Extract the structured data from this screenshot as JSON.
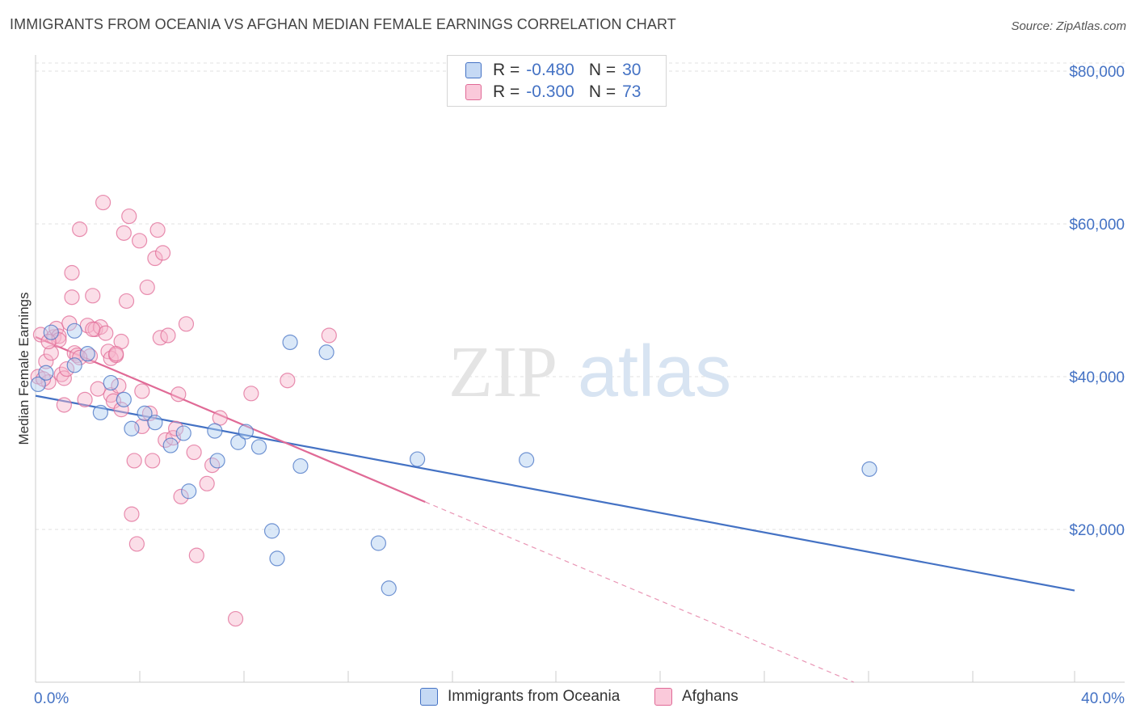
{
  "title": "IMMIGRANTS FROM OCEANIA VS AFGHAN MEDIAN FEMALE EARNINGS CORRELATION CHART",
  "source": "Source: ZipAtlas.com",
  "watermark": {
    "zip": "ZIP",
    "atlas": "atlas"
  },
  "colors": {
    "blue": "#4472c4",
    "blue_fill": "#aecbf0",
    "pink": "#e06a96",
    "pink_fill": "#f6b6cb"
  },
  "legend": {
    "blue": {
      "r_label": "R =",
      "r_value": "-0.480",
      "n_label": "N =",
      "n_value": "30"
    },
    "pink": {
      "r_label": "R =",
      "r_value": "-0.300",
      "n_label": "N =",
      "n_value": "73"
    }
  },
  "chart_data": {
    "type": "scatter",
    "xlabel": "",
    "ylabel": "Median Female Earnings",
    "xlim": [
      0,
      40
    ],
    "ylim": [
      0,
      80000
    ],
    "x_tick_labels": [
      "0.0%",
      "40.0%"
    ],
    "y_ticks": [
      20000,
      40000,
      60000,
      80000
    ],
    "y_tick_labels": [
      "$20,000",
      "$40,000",
      "$60,000",
      "$80,000"
    ],
    "grid": true,
    "series": [
      {
        "name": "Immigrants from Oceania",
        "color": "blue",
        "points": [
          [
            0.1,
            39000
          ],
          [
            0.4,
            40500
          ],
          [
            0.6,
            45800
          ],
          [
            1.5,
            46000
          ],
          [
            1.5,
            41500
          ],
          [
            2.0,
            43000
          ],
          [
            2.5,
            35300
          ],
          [
            2.9,
            39200
          ],
          [
            3.4,
            37000
          ],
          [
            3.7,
            33200
          ],
          [
            4.2,
            35200
          ],
          [
            4.6,
            34000
          ],
          [
            5.2,
            31000
          ],
          [
            5.7,
            32600
          ],
          [
            5.9,
            25000
          ],
          [
            6.9,
            32900
          ],
          [
            7.0,
            29000
          ],
          [
            7.8,
            31400
          ],
          [
            8.1,
            32800
          ],
          [
            8.6,
            30800
          ],
          [
            9.1,
            19800
          ],
          [
            9.3,
            16200
          ],
          [
            9.8,
            44500
          ],
          [
            10.2,
            28300
          ],
          [
            11.2,
            43200
          ],
          [
            13.2,
            18200
          ],
          [
            13.6,
            12300
          ],
          [
            14.7,
            29200
          ],
          [
            18.9,
            29100
          ],
          [
            32.1,
            27900
          ]
        ],
        "trend": {
          "x": [
            0,
            40
          ],
          "y": [
            37500,
            12000
          ],
          "dashed_extension": false
        }
      },
      {
        "name": "Afghans",
        "color": "pink",
        "points": [
          [
            0.1,
            40000
          ],
          [
            0.2,
            45500
          ],
          [
            0.4,
            42000
          ],
          [
            0.5,
            39300
          ],
          [
            0.6,
            43100
          ],
          [
            0.7,
            45200
          ],
          [
            0.8,
            46300
          ],
          [
            0.9,
            45300
          ],
          [
            1.0,
            40300
          ],
          [
            1.1,
            39800
          ],
          [
            1.2,
            41000
          ],
          [
            1.3,
            47000
          ],
          [
            1.4,
            53600
          ],
          [
            1.4,
            50400
          ],
          [
            1.5,
            43100
          ],
          [
            1.6,
            42800
          ],
          [
            1.7,
            59300
          ],
          [
            1.9,
            37000
          ],
          [
            2.0,
            46700
          ],
          [
            2.1,
            42700
          ],
          [
            2.2,
            50600
          ],
          [
            2.3,
            46200
          ],
          [
            2.5,
            46500
          ],
          [
            2.6,
            62800
          ],
          [
            2.7,
            45700
          ],
          [
            2.8,
            43300
          ],
          [
            2.9,
            42400
          ],
          [
            2.9,
            37600
          ],
          [
            3.0,
            36800
          ],
          [
            3.1,
            42800
          ],
          [
            3.2,
            38800
          ],
          [
            3.3,
            44600
          ],
          [
            3.3,
            35700
          ],
          [
            3.4,
            58800
          ],
          [
            3.5,
            49900
          ],
          [
            3.6,
            61000
          ],
          [
            3.7,
            22000
          ],
          [
            3.8,
            29000
          ],
          [
            3.9,
            18100
          ],
          [
            4.0,
            57800
          ],
          [
            4.1,
            33500
          ],
          [
            4.3,
            51700
          ],
          [
            4.4,
            35200
          ],
          [
            4.5,
            29000
          ],
          [
            4.6,
            55500
          ],
          [
            4.7,
            59200
          ],
          [
            4.8,
            45100
          ],
          [
            4.9,
            56200
          ],
          [
            5.0,
            31700
          ],
          [
            5.1,
            45400
          ],
          [
            5.3,
            32000
          ],
          [
            5.4,
            33200
          ],
          [
            5.5,
            37700
          ],
          [
            5.6,
            24300
          ],
          [
            5.8,
            46900
          ],
          [
            6.1,
            30100
          ],
          [
            6.2,
            16600
          ],
          [
            6.6,
            26000
          ],
          [
            6.8,
            28400
          ],
          [
            7.1,
            34600
          ],
          [
            7.7,
            8300
          ],
          [
            8.3,
            37800
          ],
          [
            9.7,
            39500
          ],
          [
            11.3,
            45400
          ],
          [
            0.3,
            39700
          ],
          [
            0.9,
            44800
          ],
          [
            1.1,
            36300
          ],
          [
            1.7,
            42500
          ],
          [
            2.4,
            38400
          ],
          [
            3.1,
            43000
          ],
          [
            2.2,
            46200
          ],
          [
            4.1,
            38100
          ],
          [
            0.5,
            44600
          ]
        ],
        "trend": {
          "x": [
            0,
            15
          ],
          "y": [
            45200,
            23600
          ],
          "dashed_extension": true,
          "dashed_x": [
            15,
            31.5
          ],
          "dashed_y": [
            23600,
            0
          ]
        }
      }
    ]
  },
  "bottom_legend": {
    "blue_label": "Immigrants from Oceania",
    "pink_label": "Afghans"
  }
}
